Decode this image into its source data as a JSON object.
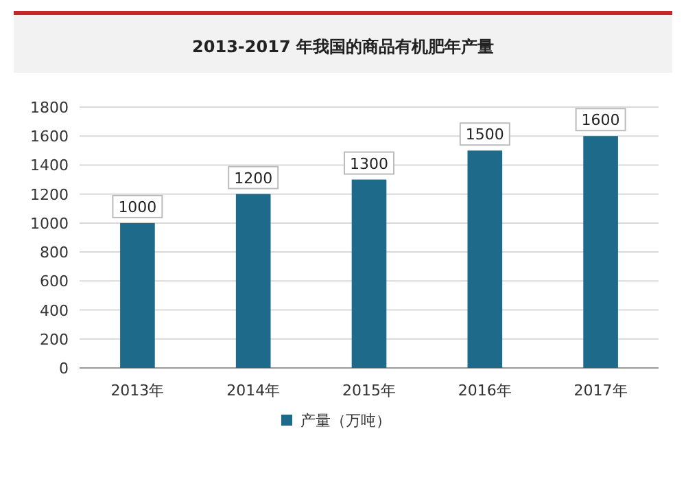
{
  "chart_data": {
    "type": "bar",
    "title": "2013-2017 年我国的商品有机肥年产量",
    "categories": [
      "2013年",
      "2014年",
      "2015年",
      "2016年",
      "2017年"
    ],
    "series": [
      {
        "name": "产量（万吨）",
        "color": "#1e6a8a",
        "values": [
          1000,
          1200,
          1300,
          1500,
          1600
        ]
      }
    ],
    "ylim": [
      0,
      1800
    ],
    "yticks": [
      0,
      200,
      400,
      600,
      800,
      1000,
      1200,
      1400,
      1600,
      1800
    ],
    "grid": "y",
    "legend": "bottom",
    "data_labels": true
  }
}
